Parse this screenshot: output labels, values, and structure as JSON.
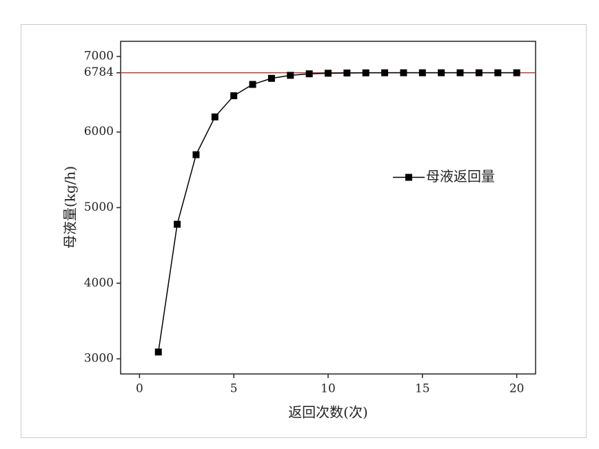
{
  "chart_data": {
    "type": "line",
    "x_label": "返回次数(次)",
    "y_label": "母液量(kg/h)",
    "x": [
      1,
      2,
      3,
      4,
      5,
      6,
      7,
      8,
      9,
      10,
      11,
      12,
      13,
      14,
      15,
      16,
      17,
      18,
      19,
      20
    ],
    "series": [
      {
        "name": "母液返回量",
        "color": "#000000",
        "values": [
          3090,
          4780,
          5700,
          6200,
          6480,
          6630,
          6710,
          6750,
          6770,
          6778,
          6781,
          6783,
          6784,
          6784,
          6784,
          6784,
          6784,
          6784,
          6784,
          6784
        ]
      }
    ],
    "xlim": [
      -1,
      21
    ],
    "xticks": [
      0,
      5,
      10,
      15,
      20
    ],
    "ylim": [
      2800,
      7200
    ],
    "yticks": [
      3000,
      4000,
      5000,
      6000,
      6784,
      7000
    ],
    "reference_line": {
      "value": 6784,
      "color": "#c0392b"
    },
    "legend": "right",
    "grid": false
  }
}
